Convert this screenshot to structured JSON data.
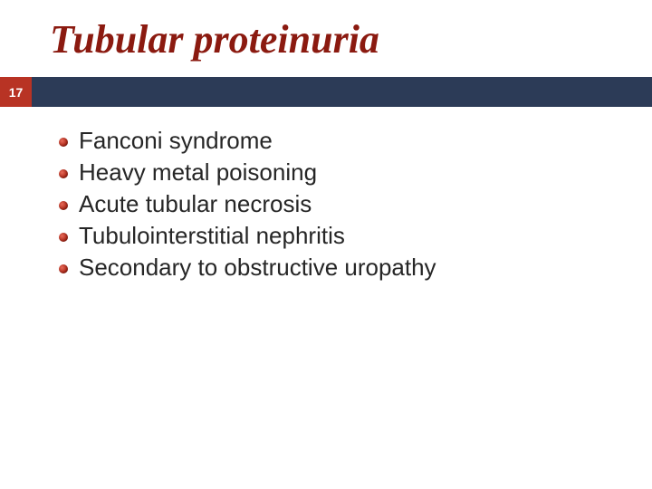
{
  "slide": {
    "title": "Tubular proteinuria",
    "title_color": "#8b1a10",
    "title_font_family": "Georgia, 'Times New Roman', serif",
    "title_font_style": "italic",
    "title_font_weight": "bold",
    "title_fontsize": 44,
    "page_number": "17",
    "badge_bg": "#b83324",
    "bar_bg": "#2c3b57",
    "badge_text_color": "#ffffff",
    "badge_fontsize": 14,
    "bullet_color": "#b02a1a",
    "item_fontsize": 26,
    "item_color": "#262626",
    "background_color": "#ffffff",
    "items": [
      {
        "text": "Fanconi syndrome"
      },
      {
        "text": "Heavy metal poisoning"
      },
      {
        "text": "Acute tubular necrosis"
      },
      {
        "text": "Tubulointerstitial nephritis"
      },
      {
        "text": "Secondary to obstructive uropathy"
      }
    ]
  }
}
